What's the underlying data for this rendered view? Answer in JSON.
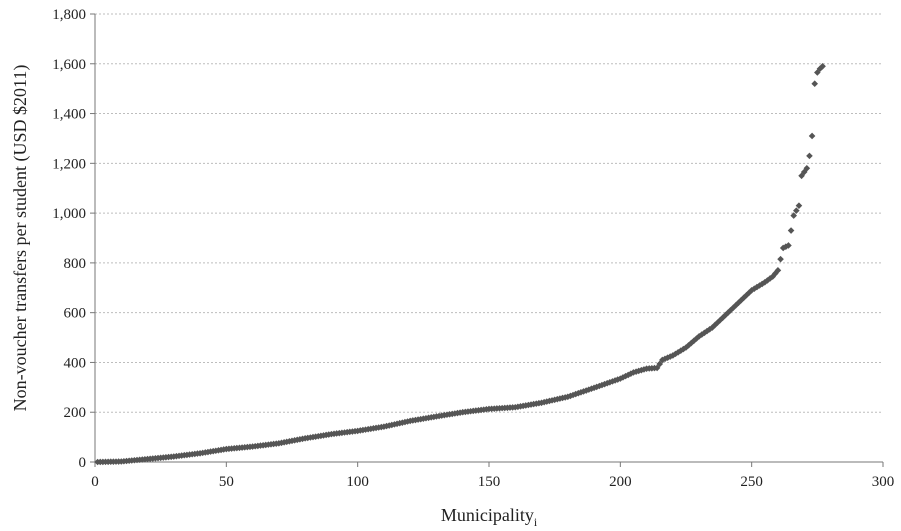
{
  "chart_data": {
    "type": "scatter",
    "title": "",
    "xlabel": "Municipality",
    "xlabel_subscript": "i",
    "ylabel": "Non-voucher transfers per student (USD $2011)",
    "xlim": [
      0,
      300
    ],
    "ylim": [
      0,
      1800
    ],
    "x_ticks": [
      0,
      50,
      100,
      150,
      200,
      250,
      300
    ],
    "y_ticks": [
      0,
      200,
      400,
      600,
      800,
      1000,
      1200,
      1400,
      1600,
      1800
    ],
    "x_tick_labels": [
      "0",
      "50",
      "100",
      "150",
      "200",
      "250",
      "300"
    ],
    "y_tick_labels": [
      "0",
      "200",
      "400",
      "600",
      "800",
      "1,000",
      "1,200",
      "1,400",
      "1,600",
      "1,800"
    ],
    "grid": true,
    "marker": "diamond",
    "marker_color": "#555555",
    "anchors": [
      [
        1,
        0
      ],
      [
        10,
        2
      ],
      [
        15,
        7
      ],
      [
        20,
        12
      ],
      [
        30,
        22
      ],
      [
        40,
        35
      ],
      [
        50,
        52
      ],
      [
        60,
        62
      ],
      [
        70,
        75
      ],
      [
        80,
        95
      ],
      [
        90,
        112
      ],
      [
        100,
        125
      ],
      [
        110,
        142
      ],
      [
        120,
        165
      ],
      [
        130,
        183
      ],
      [
        140,
        200
      ],
      [
        150,
        213
      ],
      [
        160,
        220
      ],
      [
        170,
        238
      ],
      [
        180,
        262
      ],
      [
        190,
        298
      ],
      [
        200,
        335
      ],
      [
        205,
        360
      ],
      [
        210,
        375
      ],
      [
        214,
        378
      ],
      [
        216,
        410
      ],
      [
        220,
        428
      ],
      [
        225,
        460
      ],
      [
        230,
        505
      ],
      [
        235,
        540
      ],
      [
        240,
        590
      ],
      [
        245,
        640
      ],
      [
        250,
        690
      ],
      [
        255,
        722
      ],
      [
        258,
        745
      ],
      [
        260,
        770
      ],
      [
        262,
        860
      ],
      [
        264,
        870
      ],
      [
        266,
        990
      ],
      [
        268,
        1030
      ],
      [
        269,
        1150
      ],
      [
        270,
        1165
      ],
      [
        271,
        1180
      ],
      [
        272,
        1230
      ],
      [
        273,
        1310
      ],
      [
        274,
        1520
      ],
      [
        275,
        1565
      ],
      [
        276,
        1580
      ],
      [
        277,
        1590
      ]
    ]
  }
}
